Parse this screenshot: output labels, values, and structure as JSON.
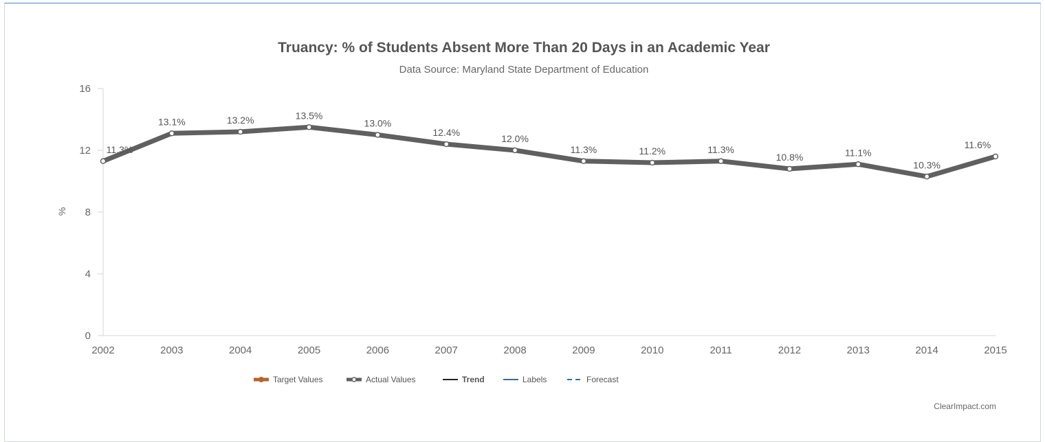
{
  "chart_data": {
    "type": "line",
    "title": "Truancy: % of Students Absent More Than 20 Days in an Academic Year",
    "subtitle": "Data Source: Maryland State Department of Education",
    "ylabel": "%",
    "xlabel": "",
    "ylim": [
      0,
      16
    ],
    "yticks": [
      0,
      4,
      8,
      12,
      16
    ],
    "categories": [
      "2002",
      "2003",
      "2004",
      "2005",
      "2006",
      "2007",
      "2008",
      "2009",
      "2010",
      "2011",
      "2012",
      "2013",
      "2014",
      "2015"
    ],
    "series": [
      {
        "name": "Actual Values",
        "color": "#606060",
        "values": [
          11.3,
          13.1,
          13.2,
          13.5,
          13.0,
          12.4,
          12.0,
          11.3,
          11.2,
          11.3,
          10.8,
          11.1,
          10.3,
          11.6
        ],
        "labels": [
          "11.3%",
          "13.1%",
          "13.2%",
          "13.5%",
          "13.0%",
          "12.4%",
          "12.0%",
          "11.3%",
          "11.2%",
          "11.3%",
          "10.8%",
          "11.1%",
          "10.3%",
          "11.6%"
        ]
      }
    ],
    "legend": {
      "placement": "bottom-center",
      "items": [
        {
          "name": "Target Values",
          "color": "#b5652a",
          "style": "thick-dot"
        },
        {
          "name": "Actual Values",
          "color": "#606060",
          "style": "thick-circle"
        },
        {
          "name": "Trend",
          "color": "#222222",
          "style": "line"
        },
        {
          "name": "Labels",
          "color": "#3a6a9a",
          "style": "line"
        },
        {
          "name": "Forecast",
          "color": "#2a6fb0",
          "style": "dashed"
        }
      ]
    },
    "grid": false,
    "credit": "ClearImpact.com"
  }
}
